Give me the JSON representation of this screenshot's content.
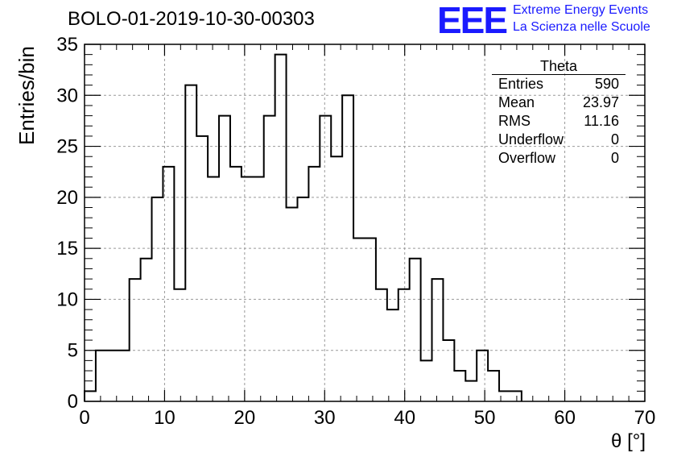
{
  "chart_data": {
    "type": "bar",
    "title": "BOLO-01-2019-10-30-00303",
    "xlabel": "θ [°]",
    "ylabel": "Entries/bin",
    "xlim": [
      0,
      70
    ],
    "ylim": [
      0,
      35
    ],
    "grid": true,
    "bin_width": 1.4,
    "bin_start": 0,
    "values": [
      1,
      5,
      5,
      5,
      12,
      14,
      20,
      23,
      11,
      31,
      26,
      22,
      28,
      23,
      22,
      22,
      28,
      34,
      19,
      20,
      23,
      28,
      24,
      30,
      16,
      16,
      11,
      9,
      11,
      14,
      4,
      12,
      6,
      3,
      2,
      5,
      3,
      1,
      1
    ],
    "x_ticks": [
      "0",
      "10",
      "20",
      "30",
      "40",
      "50",
      "60",
      "70"
    ],
    "y_ticks": [
      "0",
      "5",
      "10",
      "15",
      "20",
      "25",
      "30",
      "35"
    ]
  },
  "logo": {
    "mark": "EEE",
    "line1": "Extreme Energy Events",
    "line2": "La Scienza nelle Scuole"
  },
  "stats": {
    "title": "Theta",
    "rows": [
      {
        "label": "Entries",
        "value": "590"
      },
      {
        "label": "Mean",
        "value": "23.97"
      },
      {
        "label": "RMS",
        "value": "11.16"
      },
      {
        "label": "Underflow",
        "value": "0"
      },
      {
        "label": "Overflow",
        "value": "0"
      }
    ]
  }
}
